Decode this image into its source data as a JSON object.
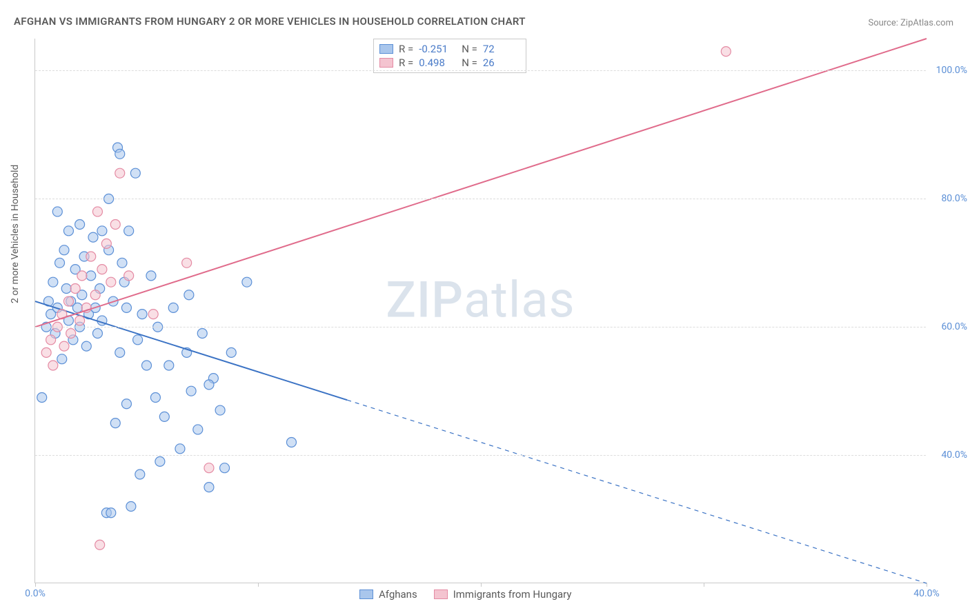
{
  "title": "AFGHAN VS IMMIGRANTS FROM HUNGARY 2 OR MORE VEHICLES IN HOUSEHOLD CORRELATION CHART",
  "source": "Source: ZipAtlas.com",
  "y_axis_label": "2 or more Vehicles in Household",
  "watermark_a": "ZIP",
  "watermark_b": "atlas",
  "chart": {
    "type": "scatter",
    "background_color": "#ffffff",
    "grid_color": "#dcdcdc",
    "axis_color": "#c9c9c9",
    "tick_color": "#5b8fd6",
    "xlim": [
      0,
      40
    ],
    "ylim": [
      20,
      105
    ],
    "x_ticks": [
      0,
      10,
      20,
      30,
      40
    ],
    "x_tick_labels": [
      "0.0%",
      "",
      "",
      "",
      "40.0%"
    ],
    "y_ticks": [
      40,
      60,
      80,
      100
    ],
    "y_tick_labels": [
      "40.0%",
      "60.0%",
      "80.0%",
      "100.0%"
    ],
    "marker_radius": 7,
    "marker_opacity": 0.55,
    "line_width": 2,
    "series": [
      {
        "name": "Afghans",
        "fill": "#a9c6ec",
        "stroke": "#5b8fd6",
        "line_color": "#3a72c4",
        "r": "-0.251",
        "n": "72",
        "trend": {
          "x1": 0,
          "y1": 64,
          "x2": 40,
          "y2": 20,
          "dash_after_x": 14
        },
        "points": [
          [
            0.3,
            49
          ],
          [
            0.5,
            60
          ],
          [
            0.6,
            64
          ],
          [
            0.7,
            62
          ],
          [
            0.8,
            67
          ],
          [
            0.9,
            59
          ],
          [
            1.0,
            78
          ],
          [
            1.0,
            63
          ],
          [
            1.1,
            70
          ],
          [
            1.2,
            55
          ],
          [
            1.3,
            72
          ],
          [
            1.4,
            66
          ],
          [
            1.5,
            61
          ],
          [
            1.5,
            75
          ],
          [
            1.6,
            64
          ],
          [
            1.7,
            58
          ],
          [
            1.8,
            69
          ],
          [
            1.9,
            63
          ],
          [
            2.0,
            76
          ],
          [
            2.0,
            60
          ],
          [
            2.1,
            65
          ],
          [
            2.2,
            71
          ],
          [
            2.3,
            57
          ],
          [
            2.4,
            62
          ],
          [
            2.5,
            68
          ],
          [
            2.6,
            74
          ],
          [
            2.7,
            63
          ],
          [
            2.8,
            59
          ],
          [
            2.9,
            66
          ],
          [
            3.0,
            75
          ],
          [
            3.0,
            61
          ],
          [
            3.3,
            72
          ],
          [
            3.3,
            80
          ],
          [
            3.5,
            64
          ],
          [
            3.7,
            88
          ],
          [
            3.8,
            87
          ],
          [
            3.8,
            56
          ],
          [
            3.9,
            70
          ],
          [
            4.0,
            67
          ],
          [
            4.1,
            63
          ],
          [
            4.2,
            75
          ],
          [
            4.5,
            84
          ],
          [
            4.6,
            58
          ],
          [
            4.8,
            62
          ],
          [
            5.0,
            54
          ],
          [
            5.2,
            68
          ],
          [
            5.4,
            49
          ],
          [
            5.5,
            60
          ],
          [
            5.8,
            46
          ],
          [
            6.0,
            54
          ],
          [
            6.2,
            63
          ],
          [
            6.5,
            41
          ],
          [
            6.8,
            56
          ],
          [
            7.0,
            50
          ],
          [
            7.3,
            44
          ],
          [
            7.5,
            59
          ],
          [
            7.8,
            35
          ],
          [
            8.0,
            52
          ],
          [
            8.3,
            47
          ],
          [
            8.5,
            38
          ],
          [
            3.2,
            31
          ],
          [
            3.4,
            31
          ],
          [
            4.3,
            32
          ],
          [
            4.7,
            37
          ],
          [
            3.6,
            45
          ],
          [
            5.6,
            39
          ],
          [
            9.5,
            67
          ],
          [
            11.5,
            42
          ],
          [
            7.8,
            51
          ],
          [
            8.8,
            56
          ],
          [
            6.9,
            65
          ],
          [
            4.1,
            48
          ]
        ]
      },
      {
        "name": "Immigrants from Hungary",
        "fill": "#f4c4d0",
        "stroke": "#e48aa3",
        "line_color": "#e06b8b",
        "r": "0.498",
        "n": "26",
        "trend": {
          "x1": 0,
          "y1": 60,
          "x2": 40,
          "y2": 105,
          "dash_after_x": 40
        },
        "points": [
          [
            0.5,
            56
          ],
          [
            0.7,
            58
          ],
          [
            0.8,
            54
          ],
          [
            1.0,
            60
          ],
          [
            1.2,
            62
          ],
          [
            1.3,
            57
          ],
          [
            1.5,
            64
          ],
          [
            1.6,
            59
          ],
          [
            1.8,
            66
          ],
          [
            2.0,
            61
          ],
          [
            2.1,
            68
          ],
          [
            2.3,
            63
          ],
          [
            2.5,
            71
          ],
          [
            2.7,
            65
          ],
          [
            2.8,
            78
          ],
          [
            3.0,
            69
          ],
          [
            3.2,
            73
          ],
          [
            3.4,
            67
          ],
          [
            3.6,
            76
          ],
          [
            3.8,
            84
          ],
          [
            4.2,
            68
          ],
          [
            5.3,
            62
          ],
          [
            6.8,
            70
          ],
          [
            7.8,
            38
          ],
          [
            2.9,
            26
          ],
          [
            31,
            103
          ]
        ]
      }
    ],
    "stats_legend": {
      "r_label": "R =",
      "n_label": "N ="
    },
    "series_legend": [
      "Afghans",
      "Immigrants from Hungary"
    ]
  }
}
